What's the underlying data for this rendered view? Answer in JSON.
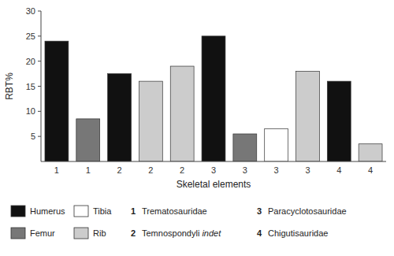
{
  "chart_data": {
    "type": "bar",
    "stacked": true,
    "grid": false,
    "xlabel": "Skeletal elements",
    "ylabel": "RBT%",
    "categories": [
      "1",
      "1",
      "2",
      "2",
      "2",
      "3",
      "3",
      "3",
      "3",
      "4",
      "4"
    ],
    "series": [
      {
        "name": "Humerus",
        "color": "#111111",
        "values": [
          24.0,
          null,
          17.5,
          null,
          null,
          25.0,
          null,
          null,
          null,
          16.0,
          null
        ]
      },
      {
        "name": "Femur",
        "color": "#777777",
        "values": [
          null,
          8.5,
          null,
          null,
          null,
          null,
          5.5,
          null,
          null,
          null,
          null
        ]
      },
      {
        "name": "Tibia",
        "color": "#ffffff",
        "values": [
          null,
          null,
          null,
          null,
          null,
          null,
          null,
          6.5,
          null,
          null,
          null
        ]
      },
      {
        "name": "Rib",
        "color": "#cccccc",
        "values": [
          null,
          null,
          null,
          16.0,
          19.0,
          null,
          null,
          null,
          18.0,
          null,
          3.5
        ]
      }
    ],
    "ylim": [
      0,
      30
    ],
    "yticks": [
      5,
      10,
      15,
      20,
      25,
      30
    ],
    "annotations": [
      {
        "num": "1",
        "text": "Trematosauridae"
      },
      {
        "num": "2",
        "text": "Temnospondyli",
        "italic_text": "indet"
      },
      {
        "num": "3",
        "text": "Paracyclotosauridae"
      },
      {
        "num": "4",
        "text": "Chigutisauridae"
      }
    ]
  }
}
